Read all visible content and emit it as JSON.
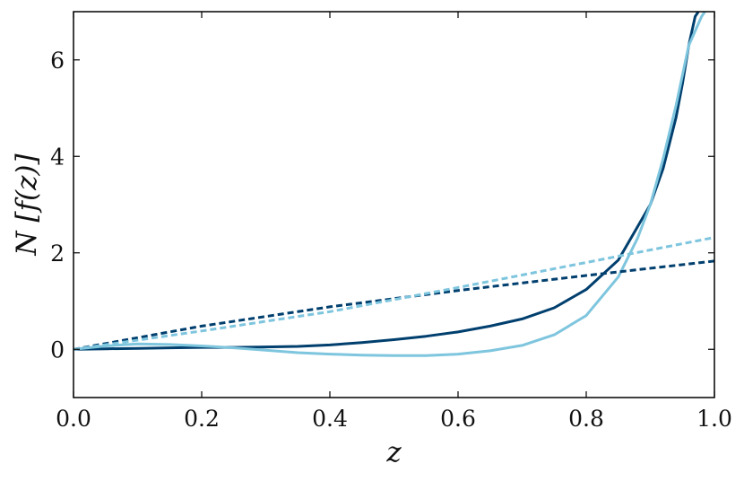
{
  "chart_data": {
    "type": "line",
    "xlabel": "z",
    "ylabel": "N [f(z)]",
    "xlim": [
      0.0,
      1.0
    ],
    "ylim": [
      -1,
      7
    ],
    "xticks": [
      "0.0",
      "0.2",
      "0.4",
      "0.6",
      "0.8",
      "1.0"
    ],
    "yticks": [
      "0",
      "2",
      "4",
      "6"
    ],
    "grid": false,
    "series": [
      {
        "color": "#003f6e",
        "style": "solid",
        "x": [
          0.0,
          0.05,
          0.1,
          0.15,
          0.2,
          0.25,
          0.3,
          0.35,
          0.4,
          0.45,
          0.5,
          0.55,
          0.6,
          0.65,
          0.7,
          0.75,
          0.8,
          0.85,
          0.9,
          0.92,
          0.94,
          0.95,
          0.96,
          0.97,
          0.975
        ],
        "y": [
          0.0,
          0.01,
          0.02,
          0.03,
          0.04,
          0.04,
          0.05,
          0.06,
          0.09,
          0.14,
          0.2,
          0.27,
          0.36,
          0.48,
          0.63,
          0.86,
          1.24,
          1.85,
          3.0,
          3.75,
          4.8,
          5.5,
          6.3,
          6.9,
          7.0
        ]
      },
      {
        "color": "#7ec5de",
        "style": "solid",
        "x": [
          0.0,
          0.05,
          0.1,
          0.15,
          0.2,
          0.25,
          0.3,
          0.35,
          0.4,
          0.45,
          0.5,
          0.55,
          0.6,
          0.65,
          0.7,
          0.75,
          0.8,
          0.85,
          0.88,
          0.9,
          0.92,
          0.94,
          0.96,
          0.98,
          0.985
        ],
        "y": [
          0.0,
          0.07,
          0.11,
          0.1,
          0.07,
          0.03,
          -0.02,
          -0.07,
          -0.1,
          -0.12,
          -0.13,
          -0.13,
          -0.1,
          -0.03,
          0.08,
          0.3,
          0.7,
          1.5,
          2.3,
          3.0,
          3.95,
          5.05,
          6.3,
          6.9,
          7.0
        ]
      },
      {
        "color": "#003f6e",
        "style": "dashed",
        "x": [
          0.0,
          0.2,
          0.4,
          0.6,
          0.8,
          1.0
        ],
        "y": [
          0.0,
          0.48,
          0.88,
          1.22,
          1.53,
          1.83
        ]
      },
      {
        "color": "#7ec5de",
        "style": "dashed",
        "x": [
          0.0,
          0.2,
          0.4,
          0.6,
          0.8,
          1.0
        ],
        "y": [
          0.0,
          0.38,
          0.78,
          1.28,
          1.8,
          2.32
        ]
      }
    ]
  }
}
